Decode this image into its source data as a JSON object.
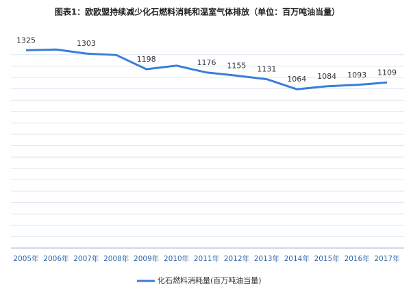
{
  "chart_data": {
    "type": "line",
    "title": "图表1：欧欧盟持续减少化石燃料消耗和温室气体排放（单位：百万吨油当量）",
    "categories": [
      "2005年",
      "2006年",
      "2007年",
      "2008年",
      "2009年",
      "2010年",
      "2011年",
      "2012年",
      "2013年",
      "2014年",
      "2015年",
      "2016年",
      "2017年"
    ],
    "series": [
      {
        "name": "化石燃料消耗量(百万吨油当量)",
        "color": "#3b7dd8",
        "values": [
          1325,
          1330,
          1303,
          1293,
          1198,
          1222,
          1176,
          1155,
          1131,
          1064,
          1084,
          1093,
          1109
        ],
        "value_labels": [
          "1325",
          null,
          "1303",
          null,
          "1198",
          null,
          "1176",
          "1155",
          "1131",
          "1064",
          "1084",
          "1093",
          "1109"
        ]
      }
    ],
    "ylim": [
      0,
      1400
    ],
    "grid": true,
    "legend": "bottom"
  }
}
